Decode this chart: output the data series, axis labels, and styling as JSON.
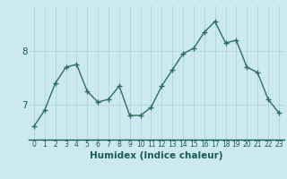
{
  "x": [
    0,
    1,
    2,
    3,
    4,
    5,
    6,
    7,
    8,
    9,
    10,
    11,
    12,
    13,
    14,
    15,
    16,
    17,
    18,
    19,
    20,
    21,
    22,
    23
  ],
  "y": [
    6.6,
    6.9,
    7.4,
    7.7,
    7.75,
    7.25,
    7.05,
    7.1,
    7.35,
    6.8,
    6.8,
    6.95,
    7.35,
    7.65,
    7.95,
    8.05,
    8.35,
    8.55,
    8.15,
    8.2,
    7.7,
    7.6,
    7.1,
    6.85
  ],
  "xlabel": "Humidex (Indice chaleur)",
  "yticks": [
    7,
    8
  ],
  "ylim": [
    6.35,
    8.85
  ],
  "xlim": [
    -0.5,
    23.5
  ],
  "bg_color": "#cce8f0",
  "line_color": "#2e6e5e",
  "marker_color": "#2e6e5e",
  "grid_color": "#b0d4d8",
  "label_color": "#1a5c4e",
  "xtick_fontsize": 5.5,
  "ytick_fontsize": 7.5,
  "xlabel_fontsize": 7.5,
  "linewidth": 1.0,
  "markersize": 4
}
